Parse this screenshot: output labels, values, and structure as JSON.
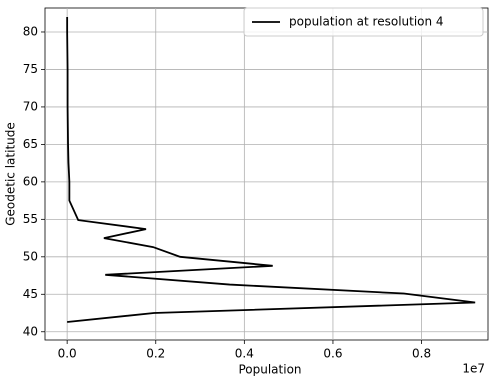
{
  "chart_data": {
    "type": "line",
    "xlabel": "Population",
    "ylabel": "Geodetic latitude",
    "x_offset_label": "1e7",
    "y": [
      41.3,
      42.5,
      43.9,
      45.1,
      46.3,
      47.6,
      48.8,
      50.0,
      51.3,
      52.5,
      53.7,
      54.9,
      57.5,
      60.0,
      62.5,
      65.0,
      70.0,
      75.0,
      80.0,
      82.0
    ],
    "series": [
      {
        "name": "population at resolution 4",
        "color": "#000000",
        "values": [
          0.0,
          0.196,
          0.921,
          0.76,
          0.367,
          0.086,
          0.464,
          0.255,
          0.194,
          0.083,
          0.178,
          0.025,
          0.005,
          0.005,
          0.003,
          0.002,
          0.001,
          0.001,
          0.0,
          0.0
        ]
      }
    ],
    "xlim": [
      -0.05,
      0.95
    ],
    "xticks": [
      {
        "value": 0,
        "label": "0.0"
      },
      0.2,
      0.4,
      0.6,
      0.8
    ],
    "ylim": [
      38.9,
      83.2
    ],
    "yticks": [
      40,
      45,
      50,
      55,
      60,
      65,
      70,
      75,
      80
    ],
    "grid": true,
    "legend": "upper right"
  }
}
